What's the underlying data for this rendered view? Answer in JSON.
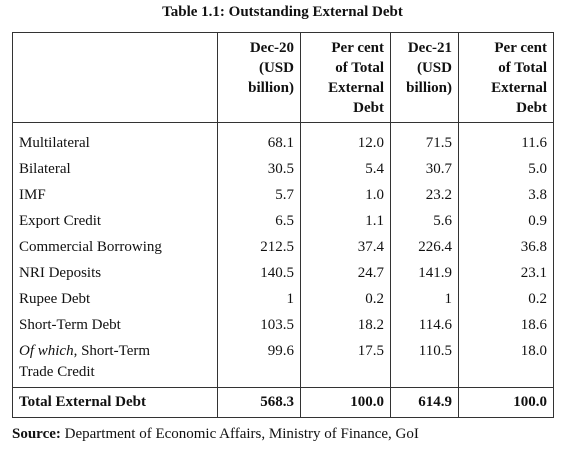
{
  "title": "Table 1.1: Outstanding External Debt",
  "table": {
    "header": [
      [],
      [
        "Dec-20",
        "(USD",
        "billion)"
      ],
      [
        "Per cent",
        "of Total",
        "External",
        "Debt"
      ],
      [
        "Dec-21",
        "(USD",
        "billion)"
      ],
      [
        "Per cent",
        "of Total",
        "External",
        "Debt"
      ]
    ],
    "rows": [
      {
        "label": "Multilateral",
        "cells": [
          "68.1",
          "12.0",
          "71.5",
          "11.6"
        ]
      },
      {
        "label": "Bilateral",
        "cells": [
          "30.5",
          "5.4",
          "30.7",
          "5.0"
        ]
      },
      {
        "label": "IMF",
        "cells": [
          "5.7",
          "1.0",
          "23.2",
          "3.8"
        ]
      },
      {
        "label": "Export Credit",
        "cells": [
          "6.5",
          "1.1",
          "5.6",
          "0.9"
        ]
      },
      {
        "label": "Commercial Borrowing",
        "cells": [
          "212.5",
          "37.4",
          "226.4",
          "36.8"
        ]
      },
      {
        "label": "NRI Deposits",
        "cells": [
          "140.5",
          "24.7",
          "141.9",
          "23.1"
        ]
      },
      {
        "label": "Rupee Debt",
        "cells": [
          "1",
          "0.2",
          "1",
          "0.2"
        ]
      },
      {
        "label": "Short-Term Debt",
        "cells": [
          "103.5",
          "18.2",
          "114.6",
          "18.6"
        ]
      },
      {
        "label_italic": "Of which",
        "label": ", Short-Term Trade Credit",
        "cells": [
          "99.6",
          "17.5",
          "110.5",
          "18.0"
        ]
      }
    ],
    "total": {
      "label": "Total External Debt",
      "cells": [
        "568.3",
        "100.0",
        "614.9",
        "100.0"
      ]
    }
  },
  "source": {
    "label": "Source:",
    "text": " Department of Economic Affairs, Ministry of Finance, GoI"
  }
}
